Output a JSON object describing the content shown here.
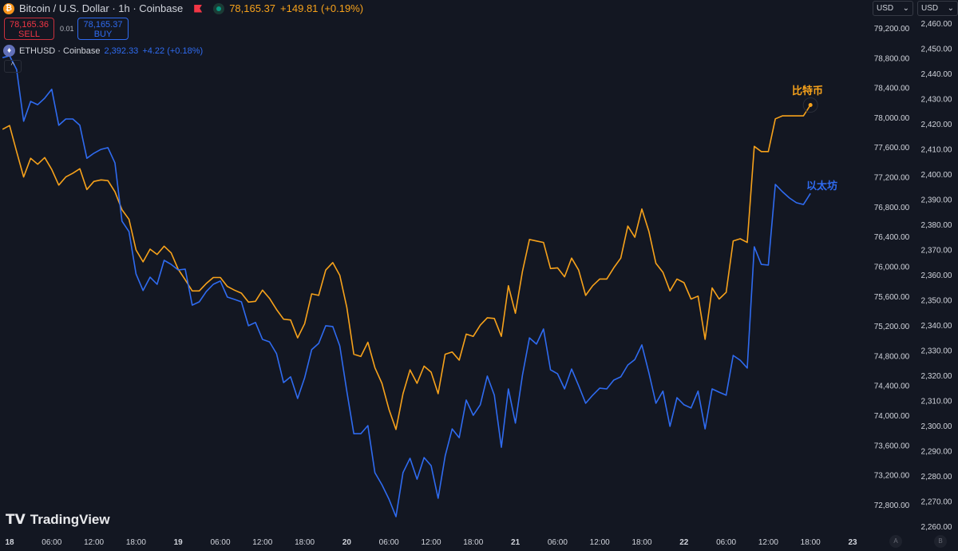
{
  "header": {
    "title": "Bitcoin / U.S. Dollar · 1h · Coinbase",
    "coin_icon": "bitcoin-icon",
    "price": "78,165.37",
    "change": "+149.81 (+0.19%)"
  },
  "trade": {
    "sell_price": "78,165.36",
    "sell_label": "SELL",
    "spread": "0.01",
    "buy_price": "78,165.37",
    "buy_label": "BUY"
  },
  "compare": {
    "symbol": "ETHUSD · Coinbase",
    "price": "2,392.33",
    "change": "+4.22 (+0.18%)"
  },
  "collapse_icon": "^",
  "scales": {
    "left_currency": "USD",
    "right_currency": "USD"
  },
  "logo": "TradingView",
  "scale_buttons": [
    "A",
    "B"
  ],
  "colors": {
    "background": "#131722",
    "btc": "#f7a21b",
    "eth": "#2f6bf0",
    "text": "#d1d4dc"
  },
  "chart_data": {
    "type": "line",
    "interval": "1h",
    "x_ticks": [
      "18",
      "06:00",
      "12:00",
      "18:00",
      "19",
      "06:00",
      "12:00",
      "18:00",
      "20",
      "06:00",
      "12:00",
      "18:00",
      "21",
      "06:00",
      "12:00",
      "18:00",
      "22",
      "06:00",
      "12:00",
      "18:00",
      "23"
    ],
    "btc_axis": {
      "ylim": [
        72800,
        79200
      ],
      "ticks": [
        "79,200.00",
        "78,800.00",
        "78,400.00",
        "78,000.00",
        "77,600.00",
        "77,200.00",
        "76,800.00",
        "76,400.00",
        "76,000.00",
        "75,600.00",
        "75,200.00",
        "74,800.00",
        "74,400.00",
        "74,000.00",
        "73,600.00",
        "73,200.00",
        "72,800.00"
      ]
    },
    "eth_axis": {
      "ylim": [
        2260,
        2460
      ],
      "ticks": [
        "2,460.00",
        "2,450.00",
        "2,440.00",
        "2,430.00",
        "2,420.00",
        "2,410.00",
        "2,400.00",
        "2,390.00",
        "2,380.00",
        "2,370.00",
        "2,360.00",
        "2,350.00",
        "2,340.00",
        "2,330.00",
        "2,320.00",
        "2,310.00",
        "2,300.00",
        "2,290.00",
        "2,280.00",
        "2,270.00",
        "2,260.00"
      ]
    },
    "series": [
      {
        "name": "比特币",
        "axis": "btc",
        "values": [
          77840,
          77890,
          77540,
          77200,
          77450,
          77370,
          77460,
          77300,
          77090,
          77200,
          77250,
          77310,
          77030,
          77140,
          77160,
          77150,
          77000,
          76760,
          76630,
          76220,
          76060,
          76230,
          76160,
          76270,
          76180,
          75960,
          75820,
          75670,
          75670,
          75770,
          75850,
          75850,
          75730,
          75680,
          75640,
          75520,
          75530,
          75680,
          75570,
          75420,
          75290,
          75280,
          75040,
          75230,
          75630,
          75610,
          75950,
          76050,
          75880,
          75450,
          74820,
          74790,
          74980,
          74640,
          74430,
          74080,
          73810,
          74290,
          74610,
          74430,
          74660,
          74580,
          74290,
          74820,
          74850,
          74740,
          75090,
          75060,
          75210,
          75310,
          75300,
          75060,
          75740,
          75370,
          75930,
          76360,
          76340,
          76320,
          75970,
          75980,
          75860,
          76110,
          75950,
          75610,
          75740,
          75830,
          75830,
          75980,
          76110,
          76540,
          76390,
          76770,
          76470,
          76040,
          75920,
          75670,
          75830,
          75780,
          75560,
          75600,
          75020,
          75710,
          75560,
          75650,
          76340,
          76370,
          76320,
          77610,
          77540,
          77540,
          77980,
          78020,
          78020,
          78020,
          78020,
          78165.37
        ]
      },
      {
        "name": "以太坊",
        "axis": "eth",
        "values": [
          2446.3,
          2447.0,
          2441.6,
          2421.0,
          2428.9,
          2427.6,
          2430.2,
          2433.7,
          2419.4,
          2421.9,
          2421.9,
          2419.4,
          2406.3,
          2408.3,
          2409.8,
          2410.5,
          2404.4,
          2381.3,
          2377.1,
          2360.3,
          2353.7,
          2359.0,
          2356.2,
          2365.7,
          2364.1,
          2361.9,
          2362.2,
          2347.9,
          2349.2,
          2353.3,
          2356.2,
          2357.5,
          2351.1,
          2350.2,
          2349.2,
          2339.7,
          2341.0,
          2334.3,
          2333.3,
          2328.6,
          2317.1,
          2319.4,
          2310.8,
          2319.0,
          2330.2,
          2332.7,
          2339.7,
          2339.4,
          2331.7,
          2313.7,
          2296.8,
          2296.8,
          2300.0,
          2281.3,
          2276.5,
          2270.8,
          2263.8,
          2281.3,
          2287.0,
          2278.7,
          2287.3,
          2284.1,
          2271.1,
          2287.9,
          2298.7,
          2295.2,
          2310.2,
          2304.1,
          2308.3,
          2319.7,
          2312.1,
          2291.4,
          2314.6,
          2301.0,
          2320.0,
          2334.9,
          2332.4,
          2338.4,
          2322.2,
          2320.6,
          2314.6,
          2322.5,
          2315.9,
          2308.9,
          2312.1,
          2314.9,
          2314.6,
          2318.1,
          2319.4,
          2324.1,
          2326.3,
          2332.1,
          2321.0,
          2308.9,
          2313.7,
          2299.7,
          2311.1,
          2308.3,
          2307.0,
          2313.7,
          2298.7,
          2314.6,
          2313.3,
          2312.1,
          2327.9,
          2326.0,
          2322.9,
          2371.1,
          2364.1,
          2363.8,
          2395.9,
          2393.0,
          2390.5,
          2388.6,
          2387.9,
          2392.33
        ]
      }
    ]
  }
}
